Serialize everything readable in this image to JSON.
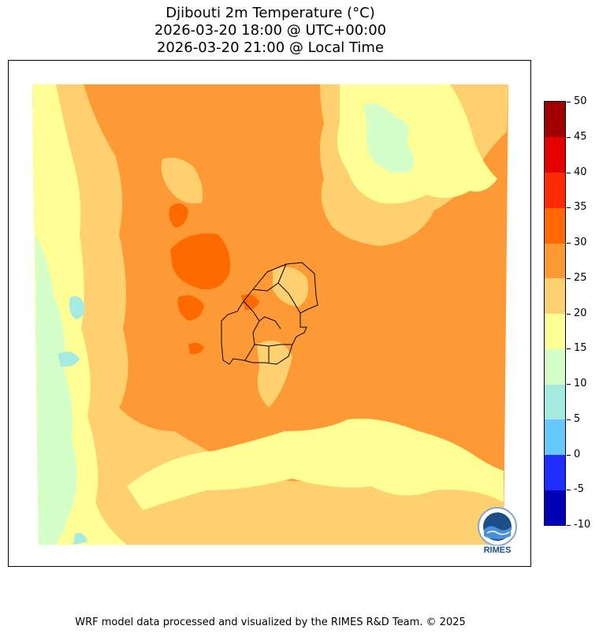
{
  "title": {
    "line1": "Djibouti 2m Temperature (°C)",
    "line2": "2026-03-20 18:00 @ UTC+00:00",
    "line3": "2026-03-20 21:00 @ Local Time"
  },
  "colorbar": {
    "levels": [
      -10,
      -5,
      0,
      5,
      10,
      15,
      20,
      25,
      30,
      35,
      40,
      45,
      50
    ],
    "labels": [
      "-10",
      "-5",
      "0",
      "5",
      "10",
      "15",
      "20",
      "25",
      "30",
      "35",
      "40",
      "45",
      "50"
    ],
    "colors": [
      "#0000b4",
      "#1f2eff",
      "#67c8ff",
      "#a5ebe1",
      "#d5ffc8",
      "#ffff96",
      "#ffd070",
      "#fe9a35",
      "#ff6a00",
      "#ff2a00",
      "#e50000",
      "#a00000"
    ]
  },
  "map": {
    "palette": {
      "t10_15": "#d5ffc8",
      "t5_10": "#a5ebe1",
      "t15_20": "#ffff96",
      "t20_25": "#ffd070",
      "t25_30": "#fe9a35",
      "t30_35": "#ff6a00"
    },
    "border_color": "#000000"
  },
  "logo": {
    "text": "RIMES"
  },
  "footer": "WRF model data processed and visualized by the RIMES R&D Team. © 2025"
}
